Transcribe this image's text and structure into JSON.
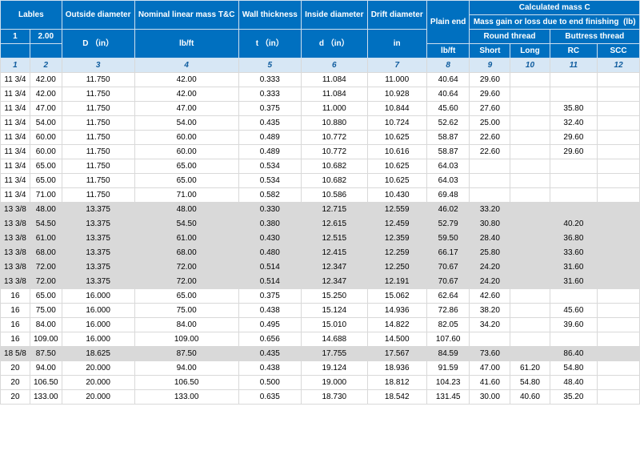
{
  "colors": {
    "header_bg": "#0070c0",
    "header_text": "#ffffff",
    "num_row_bg": "#d7e7f5",
    "num_row_text": "#0f5c9e",
    "row_odd": "#ffffff",
    "row_even": "#d9d9d9",
    "border": "#d9d9d9"
  },
  "headers": {
    "lables": "Lables",
    "outside_diameter": "Outside diameter",
    "nominal_linear": "Nominal linear mass T&C",
    "wall_thickness": "Wall thickness",
    "inside_diameter": "Inside diameter",
    "drift_diameter": "Drift diameter",
    "calculated_mass": "Calculated mass C",
    "mass_gain": "Mass gain or loss due to end finishing  (lb)",
    "plain_end": "Plain end",
    "round_thread": "Round thread",
    "buttress_thread": "Buttress thread",
    "lbl_1": "1",
    "lbl_2": "2.00",
    "u_D": "D （in）",
    "u_lbft": "lb/ft",
    "u_t": "t （in）",
    "u_d": "d （in）",
    "u_in": "in",
    "u_lbft2": "lb/ft",
    "rt_short": "Short",
    "rt_long": "Long",
    "bt_rc": "RC",
    "bt_scc": "SCC"
  },
  "num_row": [
    "1",
    "2",
    "3",
    "4",
    "5",
    "6",
    "7",
    "8",
    "9",
    "10",
    "11",
    "12"
  ],
  "rows": [
    [
      "11 3/4",
      "42.00",
      "11.750",
      "42.00",
      "0.333",
      "11.084",
      "11.000",
      "40.64",
      "29.60",
      "",
      "",
      ""
    ],
    [
      "11 3/4",
      "42.00",
      "11.750",
      "42.00",
      "0.333",
      "11.084",
      "10.928",
      "40.64",
      "29.60",
      "",
      "",
      ""
    ],
    [
      "11 3/4",
      "47.00",
      "11.750",
      "47.00",
      "0.375",
      "11.000",
      "10.844",
      "45.60",
      "27.60",
      "",
      "35.80",
      ""
    ],
    [
      "11 3/4",
      "54.00",
      "11.750",
      "54.00",
      "0.435",
      "10.880",
      "10.724",
      "52.62",
      "25.00",
      "",
      "32.40",
      ""
    ],
    [
      "11 3/4",
      "60.00",
      "11.750",
      "60.00",
      "0.489",
      "10.772",
      "10.625",
      "58.87",
      "22.60",
      "",
      "29.60",
      ""
    ],
    [
      "11 3/4",
      "60.00",
      "11.750",
      "60.00",
      "0.489",
      "10.772",
      "10.616",
      "58.87",
      "22.60",
      "",
      "29.60",
      ""
    ],
    [
      "11 3/4",
      "65.00",
      "11.750",
      "65.00",
      "0.534",
      "10.682",
      "10.625",
      "64.03",
      "",
      "",
      "",
      ""
    ],
    [
      "11 3/4",
      "65.00",
      "11.750",
      "65.00",
      "0.534",
      "10.682",
      "10.625",
      "64.03",
      "",
      "",
      "",
      ""
    ],
    [
      "11 3/4",
      "71.00",
      "11.750",
      "71.00",
      "0.582",
      "10.586",
      "10.430",
      "69.48",
      "",
      "",
      "",
      ""
    ],
    [
      "13 3/8",
      "48.00",
      "13.375",
      "48.00",
      "0.330",
      "12.715",
      "12.559",
      "46.02",
      "33.20",
      "",
      "",
      ""
    ],
    [
      "13 3/8",
      "54.50",
      "13.375",
      "54.50",
      "0.380",
      "12.615",
      "12.459",
      "52.79",
      "30.80",
      "",
      "40.20",
      ""
    ],
    [
      "13 3/8",
      "61.00",
      "13.375",
      "61.00",
      "0.430",
      "12.515",
      "12.359",
      "59.50",
      "28.40",
      "",
      "36.80",
      ""
    ],
    [
      "13 3/8",
      "68.00",
      "13.375",
      "68.00",
      "0.480",
      "12.415",
      "12.259",
      "66.17",
      "25.80",
      "",
      "33.60",
      ""
    ],
    [
      "13 3/8",
      "72.00",
      "13.375",
      "72.00",
      "0.514",
      "12.347",
      "12.250",
      "70.67",
      "24.20",
      "",
      "31.60",
      ""
    ],
    [
      "13 3/8",
      "72.00",
      "13.375",
      "72.00",
      "0.514",
      "12.347",
      "12.191",
      "70.67",
      "24.20",
      "",
      "31.60",
      ""
    ],
    [
      "16",
      "65.00",
      "16.000",
      "65.00",
      "0.375",
      "15.250",
      "15.062",
      "62.64",
      "42.60",
      "",
      "",
      ""
    ],
    [
      "16",
      "75.00",
      "16.000",
      "75.00",
      "0.438",
      "15.124",
      "14.936",
      "72.86",
      "38.20",
      "",
      "45.60",
      ""
    ],
    [
      "16",
      "84.00",
      "16.000",
      "84.00",
      "0.495",
      "15.010",
      "14.822",
      "82.05",
      "34.20",
      "",
      "39.60",
      ""
    ],
    [
      "16",
      "109.00",
      "16.000",
      "109.00",
      "0.656",
      "14.688",
      "14.500",
      "107.60",
      "",
      "",
      "",
      ""
    ],
    [
      "18 5/8",
      "87.50",
      "18.625",
      "87.50",
      "0.435",
      "17.755",
      "17.567",
      "84.59",
      "73.60",
      "",
      "86.40",
      ""
    ],
    [
      "20",
      "94.00",
      "20.000",
      "94.00",
      "0.438",
      "19.124",
      "18.936",
      "91.59",
      "47.00",
      "61.20",
      "54.80",
      ""
    ],
    [
      "20",
      "106.50",
      "20.000",
      "106.50",
      "0.500",
      "19.000",
      "18.812",
      "104.23",
      "41.60",
      "54.80",
      "48.40",
      ""
    ],
    [
      "20",
      "133.00",
      "20.000",
      "133.00",
      "0.635",
      "18.730",
      "18.542",
      "131.45",
      "30.00",
      "40.60",
      "35.20",
      ""
    ]
  ],
  "group_sizes": [
    9,
    6,
    4,
    1,
    3
  ]
}
